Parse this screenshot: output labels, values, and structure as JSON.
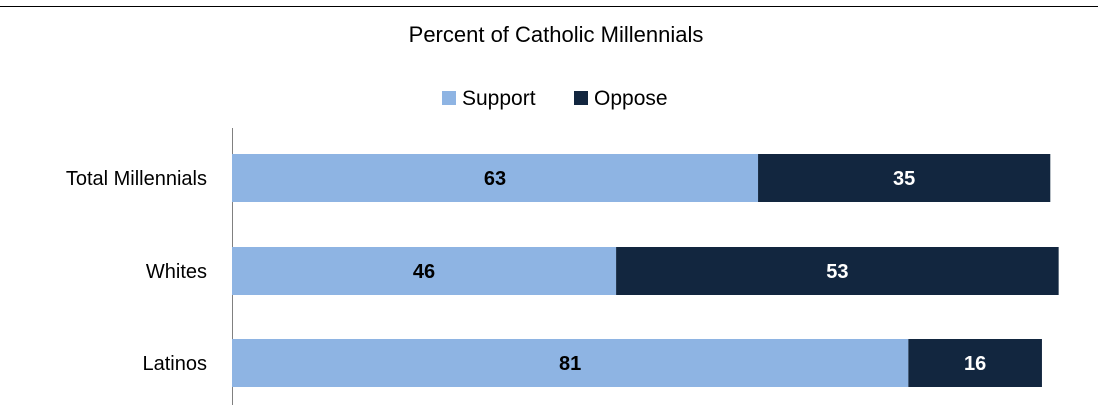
{
  "chart_data": {
    "type": "bar",
    "orientation": "horizontal",
    "stacked": true,
    "title": "Percent of Catholic Millennials",
    "categories": [
      "Total Millennials",
      "Whites",
      "Latinos"
    ],
    "series": [
      {
        "name": "Support",
        "values": [
          63,
          46,
          81
        ],
        "color": "#8EB4E3"
      },
      {
        "name": "Oppose",
        "values": [
          35,
          53,
          16
        ],
        "color": "#12263F"
      }
    ],
    "value_label_colors": [
      "#000000",
      "#ffffff"
    ],
    "legend_position": "top",
    "xlim": [
      0,
      100
    ],
    "grid": false,
    "data_labels": true
  }
}
